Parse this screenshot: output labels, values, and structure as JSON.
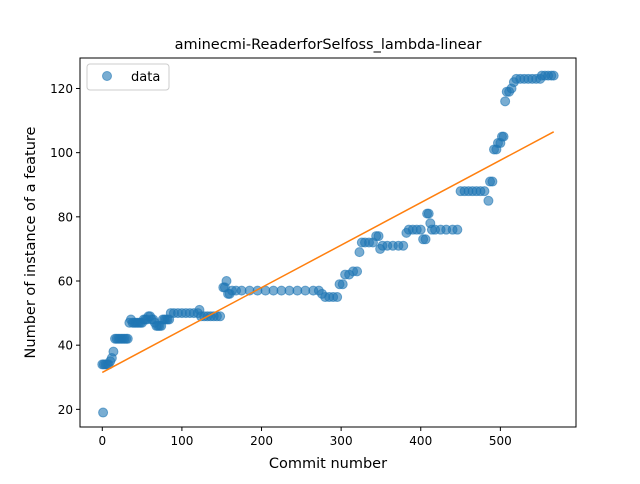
{
  "chart_data": {
    "type": "scatter",
    "title": "aminecmi-ReaderforSelfoss_lambda-linear",
    "xlabel": "Commit number",
    "ylabel": "Number of instance of a feature",
    "xlim": [
      -28,
      595
    ],
    "ylim": [
      14.5,
      129.5
    ],
    "xticks": [
      0,
      100,
      200,
      300,
      400,
      500
    ],
    "yticks": [
      20,
      40,
      60,
      80,
      100,
      120
    ],
    "grid": false,
    "legend": {
      "placement": "top-left",
      "entries": [
        "data"
      ]
    },
    "series": [
      {
        "name": "data",
        "kind": "scatter",
        "color": "#1f77b4",
        "points": [
          [
            0,
            34
          ],
          [
            1,
            19
          ],
          [
            2,
            34
          ],
          [
            4,
            34
          ],
          [
            6,
            34
          ],
          [
            8,
            34
          ],
          [
            10,
            35
          ],
          [
            12,
            36
          ],
          [
            14,
            38
          ],
          [
            16,
            42
          ],
          [
            18,
            42
          ],
          [
            20,
            42
          ],
          [
            22,
            42
          ],
          [
            24,
            42
          ],
          [
            26,
            42
          ],
          [
            28,
            42
          ],
          [
            30,
            42
          ],
          [
            32,
            42
          ],
          [
            34,
            47
          ],
          [
            36,
            48
          ],
          [
            38,
            47
          ],
          [
            40,
            47
          ],
          [
            42,
            47
          ],
          [
            44,
            47
          ],
          [
            46,
            47
          ],
          [
            48,
            47
          ],
          [
            50,
            47
          ],
          [
            52,
            48
          ],
          [
            54,
            48
          ],
          [
            56,
            48
          ],
          [
            58,
            49
          ],
          [
            60,
            49
          ],
          [
            62,
            48
          ],
          [
            64,
            48
          ],
          [
            66,
            47
          ],
          [
            68,
            46
          ],
          [
            70,
            46
          ],
          [
            72,
            46
          ],
          [
            74,
            46
          ],
          [
            76,
            48
          ],
          [
            78,
            48
          ],
          [
            80,
            48
          ],
          [
            82,
            48
          ],
          [
            84,
            48
          ],
          [
            86,
            50
          ],
          [
            90,
            50
          ],
          [
            95,
            50
          ],
          [
            100,
            50
          ],
          [
            105,
            50
          ],
          [
            110,
            50
          ],
          [
            115,
            50
          ],
          [
            120,
            50
          ],
          [
            122,
            51
          ],
          [
            124,
            49
          ],
          [
            128,
            49
          ],
          [
            132,
            49
          ],
          [
            136,
            49
          ],
          [
            140,
            49
          ],
          [
            144,
            49
          ],
          [
            148,
            49
          ],
          [
            152,
            58
          ],
          [
            154,
            58
          ],
          [
            156,
            60
          ],
          [
            158,
            56
          ],
          [
            160,
            56
          ],
          [
            163,
            57
          ],
          [
            168,
            57
          ],
          [
            175,
            57
          ],
          [
            185,
            57
          ],
          [
            195,
            57
          ],
          [
            205,
            57
          ],
          [
            215,
            57
          ],
          [
            225,
            57
          ],
          [
            235,
            57
          ],
          [
            245,
            57
          ],
          [
            255,
            57
          ],
          [
            265,
            57
          ],
          [
            272,
            57
          ],
          [
            276,
            56
          ],
          [
            280,
            55
          ],
          [
            285,
            55
          ],
          [
            290,
            55
          ],
          [
            295,
            55
          ],
          [
            298,
            59
          ],
          [
            302,
            59
          ],
          [
            305,
            62
          ],
          [
            310,
            62
          ],
          [
            315,
            63
          ],
          [
            320,
            63
          ],
          [
            323,
            69
          ],
          [
            326,
            72
          ],
          [
            330,
            72
          ],
          [
            335,
            72
          ],
          [
            340,
            72
          ],
          [
            344,
            74
          ],
          [
            347,
            74
          ],
          [
            349,
            70
          ],
          [
            352,
            71
          ],
          [
            358,
            71
          ],
          [
            365,
            71
          ],
          [
            372,
            71
          ],
          [
            378,
            71
          ],
          [
            382,
            75
          ],
          [
            385,
            76
          ],
          [
            390,
            76
          ],
          [
            395,
            76
          ],
          [
            400,
            76
          ],
          [
            403,
            73
          ],
          [
            406,
            73
          ],
          [
            408,
            81
          ],
          [
            410,
            81
          ],
          [
            412,
            78
          ],
          [
            414,
            76
          ],
          [
            418,
            76
          ],
          [
            425,
            76
          ],
          [
            432,
            76
          ],
          [
            440,
            76
          ],
          [
            446,
            76
          ],
          [
            450,
            88
          ],
          [
            455,
            88
          ],
          [
            460,
            88
          ],
          [
            465,
            88
          ],
          [
            470,
            88
          ],
          [
            475,
            88
          ],
          [
            480,
            88
          ],
          [
            485,
            85
          ],
          [
            487,
            91
          ],
          [
            490,
            91
          ],
          [
            492,
            101
          ],
          [
            495,
            101
          ],
          [
            497,
            103
          ],
          [
            500,
            103
          ],
          [
            502,
            105
          ],
          [
            504,
            105
          ],
          [
            506,
            116
          ],
          [
            508,
            119
          ],
          [
            511,
            119
          ],
          [
            514,
            120
          ],
          [
            517,
            122
          ],
          [
            520,
            123
          ],
          [
            525,
            123
          ],
          [
            530,
            123
          ],
          [
            535,
            123
          ],
          [
            540,
            123
          ],
          [
            545,
            123
          ],
          [
            550,
            123
          ],
          [
            552,
            124
          ],
          [
            556,
            124
          ],
          [
            560,
            124
          ],
          [
            564,
            124
          ],
          [
            567,
            124
          ]
        ]
      },
      {
        "name": "",
        "kind": "line",
        "color": "#ff7f0e",
        "points": [
          [
            0,
            31.5
          ],
          [
            567,
            106.5
          ]
        ]
      }
    ]
  }
}
